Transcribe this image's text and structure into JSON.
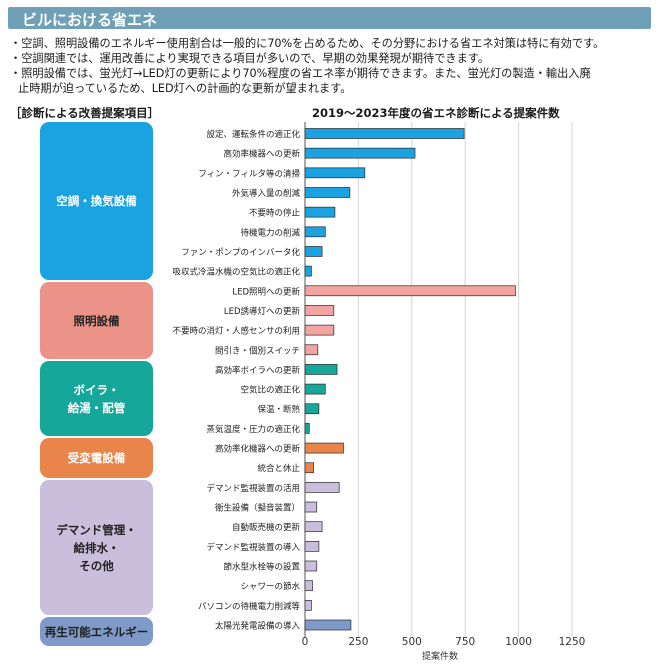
{
  "header": {
    "title": "ビルにおける省エネ"
  },
  "bullets": [
    "・空調、照明設備のエネルギー使用割合は一般的に70%を占めるため、その分野における省エネ対策は特に有効です。",
    "・空調関連では、運用改善により実現できる項目が多いので、早期の効果発現が期待できます。",
    "・照明設備では、蛍光灯→LED灯の更新により70%程度の省エネ率が期待できます。また、蛍光灯の製造・輸出入廃",
    "止時期が迫っているため、LED灯への計画的な更新が望まれます。"
  ],
  "section_left_title": "［診断による改善提案項目］",
  "section_right_title": "2019～2023年度の省エネ診断による提案件数",
  "categories_panel": [
    {
      "label": "空調・換気設備",
      "color": "#1aa3e0",
      "text_color": "#ffffff"
    },
    {
      "label": "照明設備",
      "color": "#ec9389",
      "text_color": "#222222"
    },
    {
      "label": "ボイラ・\n給湯・配管",
      "color": "#14a79a",
      "text_color": "#ffffff"
    },
    {
      "label": "受変電設備",
      "color": "#e9844a",
      "text_color": "#ffffff"
    },
    {
      "label": "デマンド管理・\n給排水・\nその他",
      "color": "#c9bedb",
      "text_color": "#222222"
    },
    {
      "label": "再生可能エネルギー",
      "color": "#7f9ac9",
      "text_color": "#222222"
    }
  ],
  "chart_data": {
    "type": "bar",
    "orientation": "horizontal",
    "xlabel": "提案件数",
    "xlim": [
      0,
      1250
    ],
    "xticks": [
      0,
      250,
      500,
      750,
      1000,
      1250
    ],
    "grid": true,
    "groups": [
      {
        "name": "空調・換気設備",
        "color": "#1aa3e0",
        "items": [
          {
            "label": "設定、運転条件の適正化",
            "value": 745
          },
          {
            "label": "高効率機器への更新",
            "value": 515
          },
          {
            "label": "フィン・フィルタ等の清掃",
            "value": 280
          },
          {
            "label": "外気導入量の削減",
            "value": 210
          },
          {
            "label": "不要時の停止",
            "value": 140
          },
          {
            "label": "待機電力の削減",
            "value": 95
          },
          {
            "label": "ファン・ポンプのインバータ化",
            "value": 80
          },
          {
            "label": "吸収式冷温水機の空気比の適正化",
            "value": 30
          }
        ]
      },
      {
        "name": "照明設備",
        "color": "#f2a5a0",
        "items": [
          {
            "label": "LED照明への更新",
            "value": 985
          },
          {
            "label": "LED誘導灯への更新",
            "value": 135
          },
          {
            "label": "不要時の消灯・人感センサの利用",
            "value": 135
          },
          {
            "label": "間引き・個別スイッチ",
            "value": 60
          }
        ]
      },
      {
        "name": "ボイラ・給湯・配管",
        "color": "#14a79a",
        "items": [
          {
            "label": "高効率ボイラへの更新",
            "value": 150
          },
          {
            "label": "空気比の適正化",
            "value": 95
          },
          {
            "label": "保温・断熱",
            "value": 65
          },
          {
            "label": "蒸気温度・圧力の適正化",
            "value": 20
          }
        ]
      },
      {
        "name": "受変電設備",
        "color": "#e9844a",
        "items": [
          {
            "label": "高効率化機器への更新",
            "value": 180
          },
          {
            "label": "統合と休止",
            "value": 40
          }
        ]
      },
      {
        "name": "デマンド管理・給排水・その他",
        "color": "#c9bedb",
        "items": [
          {
            "label": "デマンド監視装置の活用",
            "value": 160
          },
          {
            "label": "衛生設備（擬音装置）",
            "value": 55
          },
          {
            "label": "自動販売機の更新",
            "value": 80
          },
          {
            "label": "デマンド監視装置の導入",
            "value": 65
          },
          {
            "label": "節水型水栓等の設置",
            "value": 55
          },
          {
            "label": "シャワーの節水",
            "value": 35
          },
          {
            "label": "パソコンの待機電力削減等",
            "value": 30
          }
        ]
      },
      {
        "name": "再生可能エネルギー",
        "color": "#7f9ac9",
        "items": [
          {
            "label": "太陽光発電設備の導入",
            "value": 215
          }
        ]
      }
    ]
  }
}
